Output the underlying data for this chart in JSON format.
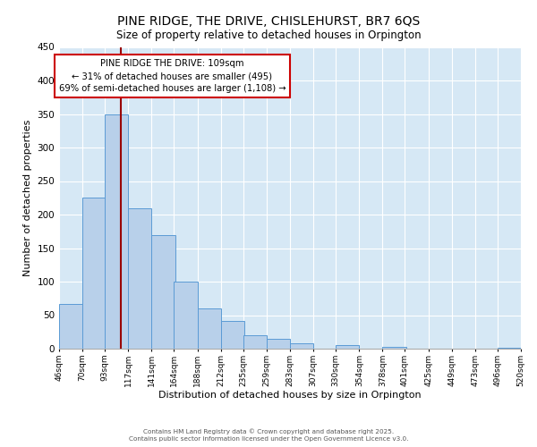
{
  "title": "PINE RIDGE, THE DRIVE, CHISLEHURST, BR7 6QS",
  "subtitle": "Size of property relative to detached houses in Orpington",
  "xlabel": "Distribution of detached houses by size in Orpington",
  "ylabel": "Number of detached properties",
  "bin_labels": [
    "46sqm",
    "70sqm",
    "93sqm",
    "117sqm",
    "141sqm",
    "164sqm",
    "188sqm",
    "212sqm",
    "235sqm",
    "259sqm",
    "283sqm",
    "307sqm",
    "330sqm",
    "354sqm",
    "378sqm",
    "401sqm",
    "425sqm",
    "449sqm",
    "473sqm",
    "496sqm",
    "520sqm"
  ],
  "bin_left_edges": [
    46,
    70,
    93,
    117,
    141,
    164,
    188,
    212,
    235,
    259,
    283,
    307,
    330,
    354,
    378,
    401,
    425,
    449,
    473,
    496
  ],
  "bar_heights": [
    67,
    225,
    350,
    210,
    170,
    100,
    60,
    42,
    20,
    15,
    8,
    0,
    5,
    0,
    3,
    0,
    0,
    0,
    0,
    2
  ],
  "bar_color": "#b8d0ea",
  "bar_edge_color": "#5b9bd5",
  "bg_color": "#d6e8f5",
  "marker_value": 109,
  "marker_color": "#990000",
  "annotation_title": "PINE RIDGE THE DRIVE: 109sqm",
  "annotation_line1": "← 31% of detached houses are smaller (495)",
  "annotation_line2": "69% of semi-detached houses are larger (1,108) →",
  "annotation_box_facecolor": "#ffffff",
  "annotation_box_edgecolor": "#cc0000",
  "ylim": [
    0,
    450
  ],
  "xlim_left": 46,
  "xlim_right": 520,
  "yticks": [
    0,
    50,
    100,
    150,
    200,
    250,
    300,
    350,
    400,
    450
  ],
  "grid_color": "#ffffff",
  "footnote1": "Contains HM Land Registry data © Crown copyright and database right 2025.",
  "footnote2": "Contains public sector information licensed under the Open Government Licence v3.0."
}
